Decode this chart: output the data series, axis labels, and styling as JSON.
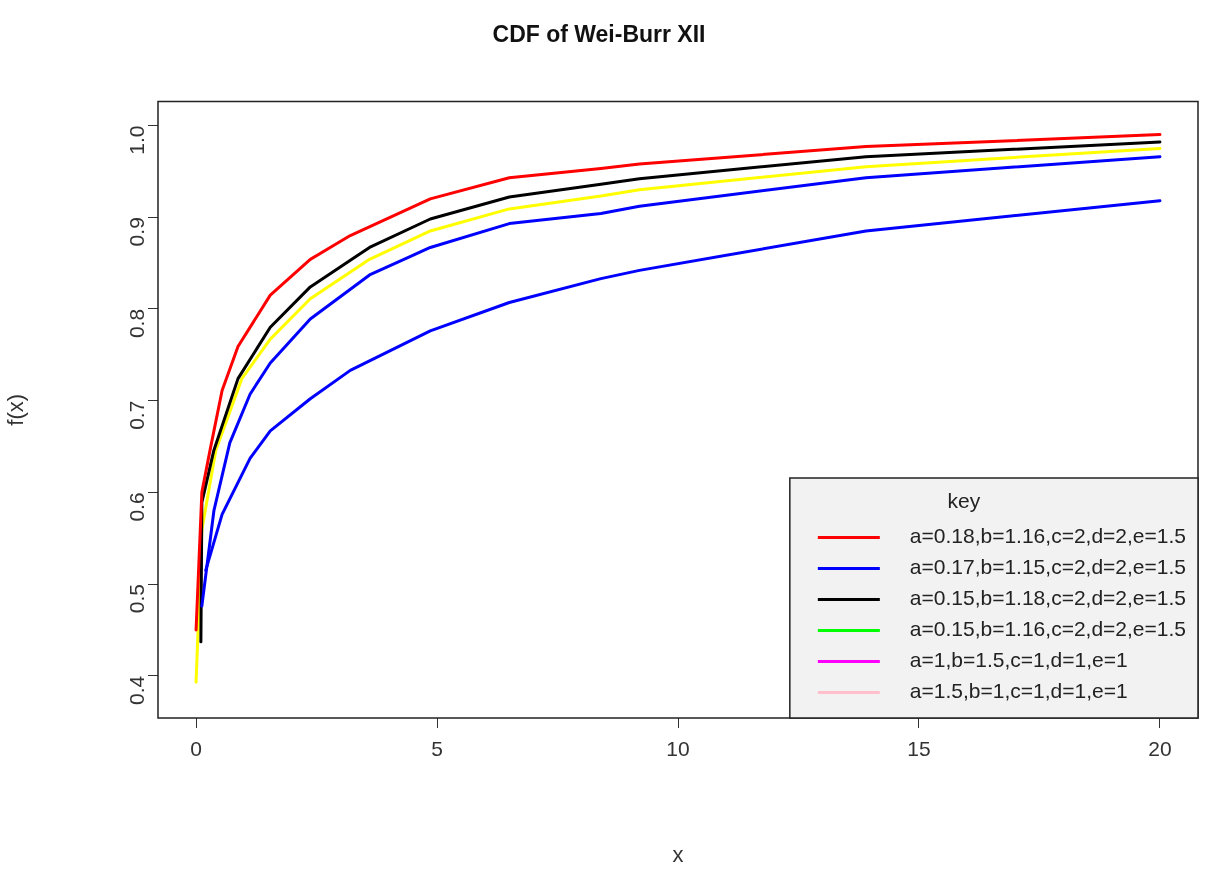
{
  "chart_data": {
    "type": "line",
    "title": "CDF of Wei-Burr XII",
    "xlabel": "x",
    "ylabel": "f(x)",
    "legend_title": "key",
    "legend": "bottom right",
    "grid": false,
    "marker": "none",
    "line_style": "solid",
    "xlim": [
      -0.79,
      20.79
    ],
    "ylim": [
      0.354,
      1.026
    ],
    "xticks": [
      0,
      5,
      10,
      15,
      20
    ],
    "yticks": [
      0.4,
      0.5,
      0.6,
      0.7,
      0.8,
      0.9,
      {
        "value": 1,
        "label": "1.0"
      }
    ],
    "series": [
      {
        "name": "a=0.18,b=1.16,c=2,d=2,e=1.5",
        "color": "#ff0000",
        "x": [
          0,
          0.12,
          0.29,
          0.54,
          0.87,
          1.54,
          2.37,
          3.2,
          4.86,
          6.5,
          8.4,
          9.2,
          13.9,
          20
        ],
        "values": [
          0.45,
          0.6,
          0.646,
          0.711,
          0.759,
          0.815,
          0.854,
          0.88,
          0.92,
          0.943,
          0.953,
          0.958,
          0.977,
          0.99
        ]
      },
      {
        "name": "a=0.17,b=1.15,c=2,d=2,e=1.5",
        "color": "#0000ff",
        "x": [
          0.12,
          0.37,
          0.7,
          1.12,
          1.54,
          2.37,
          3.6,
          4.86,
          6.5,
          8.4,
          9.2,
          13.9,
          20
        ],
        "values": [
          0.476,
          0.58,
          0.654,
          0.707,
          0.741,
          0.789,
          0.837,
          0.867,
          0.893,
          0.904,
          0.912,
          0.943,
          0.966
        ]
      },
      {
        "name": "a=0.15,b=1.18,c=2,d=2,e=1.5",
        "color": "#000000",
        "x": [
          0.1,
          0.12,
          0.37,
          0.87,
          1.54,
          2.37,
          3.6,
          4.86,
          6.5,
          8.4,
          9.2,
          13.9,
          20
        ],
        "values": [
          0.437,
          0.589,
          0.646,
          0.724,
          0.78,
          0.824,
          0.867,
          0.898,
          0.922,
          0.936,
          0.942,
          0.966,
          0.982
        ]
      },
      {
        "name": "a=0.15,b=1.16,c=2,d=2,e=1.5",
        "color": "#00ff00"
      },
      {
        "name": "a=1,b=1.5,c=1,d=1,e=1",
        "color": "#ff00ff"
      },
      {
        "name": "a=1.5,b=1,c=1,d=1,e=1",
        "color": "#ffc0cb"
      },
      {
        "color": "#ffff00",
        "x": [
          0,
          0.12,
          0.41,
          0.95,
          1.54,
          2.37,
          3.6,
          4.86,
          6.5,
          8.4,
          9.2,
          13.9,
          20
        ],
        "values": [
          0.393,
          0.559,
          0.646,
          0.724,
          0.767,
          0.811,
          0.854,
          0.885,
          0.909,
          0.923,
          0.93,
          0.955,
          0.975
        ]
      },
      {
        "color": "#0000ff",
        "x": [
          0.2,
          0.54,
          1.12,
          1.54,
          2.37,
          3.2,
          4.86,
          6.5,
          8.4,
          9.2,
          13.9,
          20
        ],
        "values": [
          0.515,
          0.576,
          0.637,
          0.667,
          0.702,
          0.733,
          0.776,
          0.807,
          0.833,
          0.842,
          0.885,
          0.918
        ]
      }
    ]
  }
}
